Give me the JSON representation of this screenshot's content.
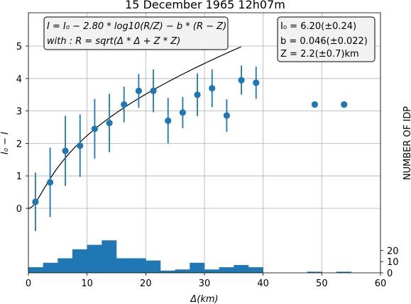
{
  "chart_data": {
    "type": "scatter",
    "title": "15 December 1965 12h07m",
    "xlabel": "Δ(km)",
    "ylabel": "I₀ − I",
    "ylabel_right": "NUMBER OF IDP",
    "xlim": [
      0,
      60
    ],
    "ylim": [
      -2,
      6
    ],
    "x_ticks": [
      "0",
      "10",
      "20",
      "30",
      "40",
      "50",
      "60"
    ],
    "y_ticks": [
      "0",
      "1",
      "2",
      "3",
      "4",
      "5"
    ],
    "y2_ticks": [
      "0",
      "10",
      "20"
    ],
    "grid": true,
    "points": [
      {
        "x": 1.2,
        "y": 0.2,
        "err": 0.9
      },
      {
        "x": 3.7,
        "y": 0.8,
        "err": 1.07
      },
      {
        "x": 6.3,
        "y": 1.77,
        "err": 1.08
      },
      {
        "x": 8.8,
        "y": 1.93,
        "err": 0.96
      },
      {
        "x": 11.3,
        "y": 2.45,
        "err": 0.92
      },
      {
        "x": 13.8,
        "y": 2.63,
        "err": 0.9
      },
      {
        "x": 16.3,
        "y": 3.2,
        "err": 0.55
      },
      {
        "x": 18.8,
        "y": 3.62,
        "err": 0.52
      },
      {
        "x": 21.3,
        "y": 3.62,
        "err": 0.66
      },
      {
        "x": 23.8,
        "y": 2.7,
        "err": 0.7
      },
      {
        "x": 26.3,
        "y": 2.95,
        "err": 0.48
      },
      {
        "x": 28.8,
        "y": 3.5,
        "err": 0.66
      },
      {
        "x": 31.3,
        "y": 3.7,
        "err": 0.58
      },
      {
        "x": 33.8,
        "y": 2.86,
        "err": 0.5
      },
      {
        "x": 36.3,
        "y": 3.95,
        "err": 0.45
      },
      {
        "x": 38.8,
        "y": 3.87,
        "err": 0.5
      },
      {
        "x": 48.8,
        "y": 3.2,
        "err": 0
      },
      {
        "x": 53.8,
        "y": 3.2,
        "err": 0
      }
    ],
    "fit": {
      "I0": 6.2,
      "b": 0.046,
      "Z": 2.2,
      "x_max": 36.3
    },
    "histogram": {
      "bin_width": 2.5,
      "bins_start": [
        0,
        2.5,
        5,
        7.5,
        10,
        12.5,
        15,
        17.5,
        20,
        22.5,
        25,
        27.5,
        30,
        32.5,
        35,
        37.5,
        47.5,
        52.5
      ],
      "counts": [
        5,
        9,
        13,
        21,
        25,
        29,
        13,
        13,
        11,
        2,
        3,
        9,
        3,
        5,
        7,
        5,
        1,
        1
      ]
    },
    "equation_lines": [
      "I = I₀ − 2.80 * log10(R/Z) − b * (R − Z)",
      "with : R = sqrt(Δ * Δ + Z * Z)"
    ],
    "params_lines": [
      "I₀ = 6.20(±0.24)",
      "b = 0.046(±0.022)",
      "Z = 2.2(±0.7)km"
    ],
    "colors": {
      "marker": "#1f77b4",
      "fit": "#000000",
      "bars": "#1f77b4"
    }
  }
}
